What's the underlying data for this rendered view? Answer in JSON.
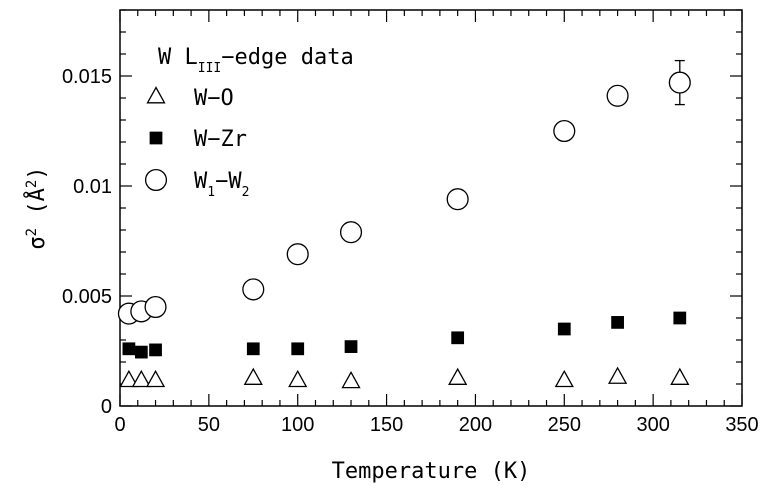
{
  "chart_data": {
    "type": "scatter",
    "title": "",
    "xlabel": "Temperature (K)",
    "ylabel_parts": {
      "base": "σ",
      "sup": "2",
      "open": " (",
      "unit": "Å",
      "unit_sup": "2",
      "close": ")"
    },
    "xlim": [
      0,
      350
    ],
    "ylim": [
      0,
      0.018
    ],
    "xticks": [
      "0",
      "50",
      "100",
      "150",
      "200",
      "250",
      "300",
      "350"
    ],
    "xtick_values": [
      0,
      50,
      100,
      150,
      200,
      250,
      300,
      350
    ],
    "yticks": [
      "0",
      "0.005",
      "0.01",
      "0.015"
    ],
    "ytick_values": [
      0,
      0.005,
      0.01,
      0.015
    ],
    "grid": false,
    "legend_placement": "top-left",
    "legend_heading": {
      "prefix": "W L",
      "sub": "III",
      "suffix": "−edge data"
    },
    "series": [
      {
        "name": "W−O",
        "marker": "open-triangle",
        "x": [
          5,
          12,
          20,
          75,
          100,
          130,
          190,
          250,
          280,
          315
        ],
        "y": [
          0.00115,
          0.00115,
          0.00115,
          0.00125,
          0.00115,
          0.0011,
          0.00125,
          0.00115,
          0.0013,
          0.00125
        ]
      },
      {
        "name": "W−Zr",
        "marker": "filled-square",
        "x": [
          5,
          12,
          20,
          75,
          100,
          130,
          190,
          250,
          280,
          315
        ],
        "y": [
          0.0026,
          0.00245,
          0.00255,
          0.0026,
          0.0026,
          0.0027,
          0.0031,
          0.0035,
          0.0038,
          0.004
        ]
      },
      {
        "name_parts": {
          "a": "W",
          "a_sub": "1",
          "dash": "−W",
          "b_sub": "2"
        },
        "marker": "open-circle",
        "x": [
          5,
          12,
          20,
          75,
          100,
          130,
          190,
          250,
          280,
          315
        ],
        "y": [
          0.0042,
          0.0043,
          0.0045,
          0.0053,
          0.0069,
          0.0079,
          0.0094,
          0.0125,
          0.0141,
          0.0147
        ],
        "error_bars": [
          {
            "x": 315,
            "y": 0.0147,
            "err": 0.001
          }
        ]
      }
    ]
  }
}
